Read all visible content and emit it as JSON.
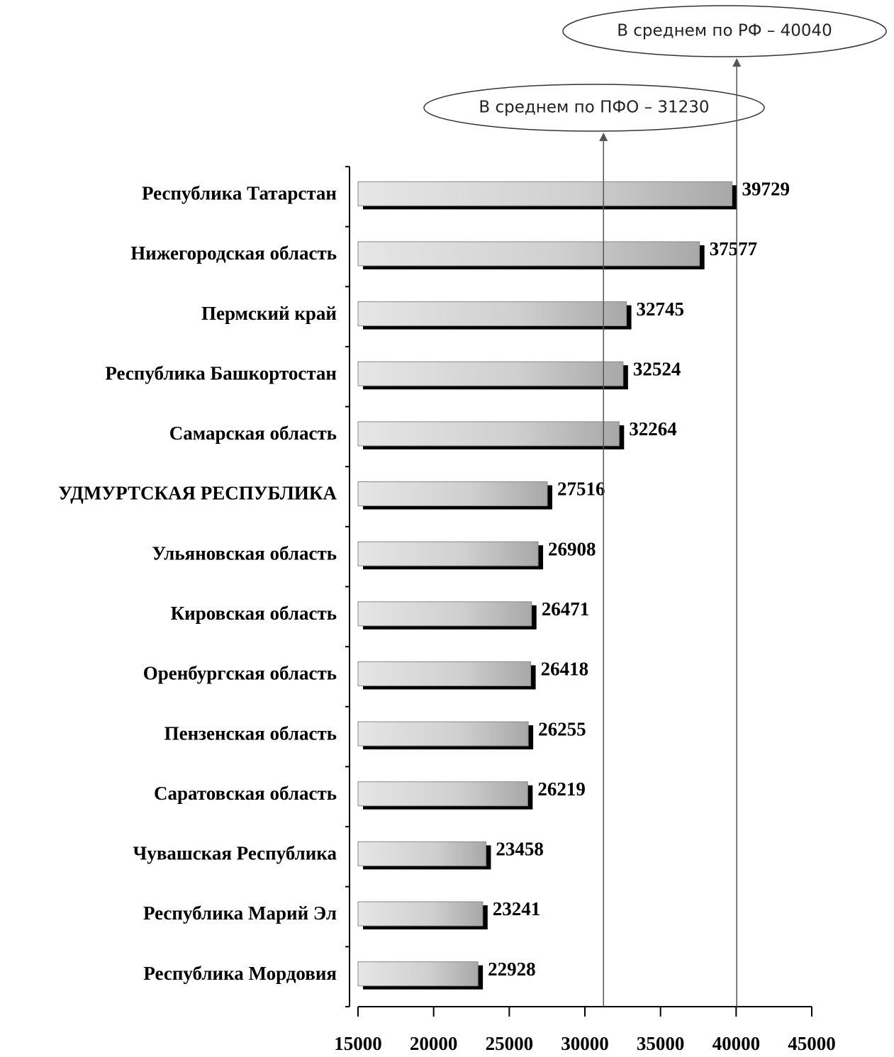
{
  "chart_data": {
    "type": "bar",
    "orientation": "horizontal",
    "categories": [
      "Республика Татарстан",
      "Нижегородская область",
      "Пермский край",
      "Республика Башкортостан",
      "Самарская область",
      "УДМУРТСКАЯ РЕСПУБЛИКА",
      "Ульяновская область",
      "Кировская область",
      "Оренбургская область",
      "Пензенская область",
      "Саратовская область",
      "Чувашская Республика",
      "Республика Марий Эл",
      "Республика Мордовия"
    ],
    "values": [
      39729,
      37577,
      32745,
      32524,
      32264,
      27516,
      26908,
      26471,
      26418,
      26255,
      26219,
      23458,
      23241,
      22928
    ],
    "color": "#c8c8c8",
    "xlim": [
      15000,
      45000
    ],
    "xticks": [
      15000,
      20000,
      25000,
      30000,
      35000,
      40000,
      45000
    ],
    "reference_lines": [
      {
        "label": "В среднем по ПФО – 31230",
        "value": 31230
      },
      {
        "label": "В среднем по РФ – 40040",
        "value": 40040
      }
    ]
  }
}
